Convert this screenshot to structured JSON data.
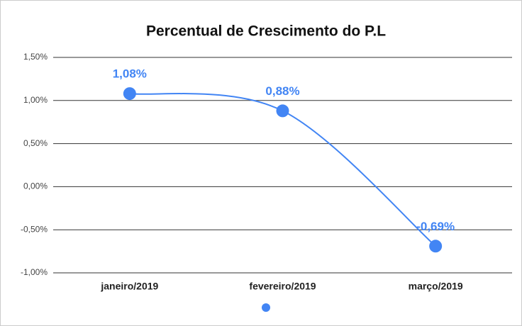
{
  "chart_data": {
    "type": "line",
    "title": "Percentual de Crescimento do P.L",
    "categories": [
      "janeiro/2019",
      "fevereiro/2019",
      "março/2019"
    ],
    "series": [
      {
        "color": "#4285f4",
        "values": [
          1.08,
          0.88,
          -0.69
        ],
        "value_labels": [
          "1,08%",
          "0,88%",
          "-0,69%"
        ]
      }
    ],
    "ylim": [
      -1.0,
      1.5
    ],
    "yticks": [
      {
        "value": -1.0,
        "label": "-1,00%"
      },
      {
        "value": -0.5,
        "label": "-0,50%"
      },
      {
        "value": 0,
        "label": "0,00%"
      },
      {
        "value": 0.5,
        "label": "0,50%"
      },
      {
        "value": 1.0,
        "label": "1,00%"
      },
      {
        "value": 1.5,
        "label": "1,50%"
      }
    ],
    "grid": true,
    "smooth": true
  }
}
